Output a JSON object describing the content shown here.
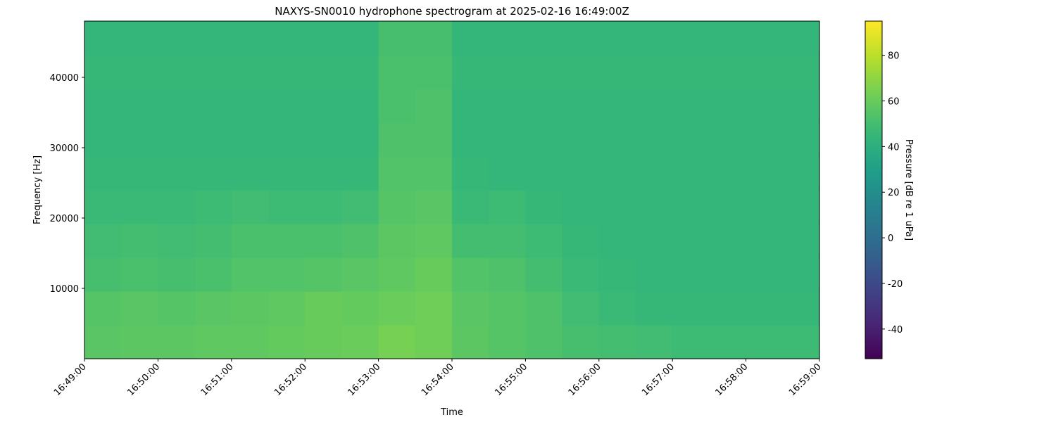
{
  "chart_data": {
    "type": "spectrogram",
    "title": "NAXYS-SN0010 hydrophone spectrogram at 2025-02-16 16:49:00Z",
    "xlabel": "Time",
    "ylabel": "Frequency [Hz]",
    "xticks": [
      "16:49:00",
      "16:50:00",
      "16:51:00",
      "16:52:00",
      "16:53:00",
      "16:54:00",
      "16:55:00",
      "16:56:00",
      "16:57:00",
      "16:58:00",
      "16:59:00"
    ],
    "ylim": [
      0,
      48000
    ],
    "yticks": [
      10000,
      20000,
      30000,
      40000
    ],
    "colormap": "viridis",
    "colorbar_label": "Pressure [dB re 1 uPa]",
    "clim": [
      -53,
      95
    ],
    "cticks": [
      -40,
      -20,
      0,
      20,
      40,
      60,
      80
    ],
    "z": [
      [
        56,
        57,
        57,
        58,
        58,
        59,
        60,
        61,
        64,
        62,
        57,
        55,
        53,
        51,
        50,
        49,
        48,
        48,
        48,
        48
      ],
      [
        55,
        56,
        55,
        56,
        57,
        58,
        60,
        59,
        61,
        62,
        56,
        55,
        53,
        49,
        47,
        46,
        46,
        46,
        46,
        46
      ],
      [
        51,
        52,
        51,
        52,
        54,
        54,
        55,
        56,
        58,
        60,
        54,
        53,
        50,
        47,
        46,
        45,
        45,
        45,
        45,
        45
      ],
      [
        49,
        50,
        49,
        50,
        52,
        52,
        52,
        53,
        57,
        58,
        50,
        50,
        48,
        46,
        45,
        45,
        45,
        45,
        45,
        45
      ],
      [
        47,
        47,
        47,
        48,
        49,
        48,
        48,
        49,
        55,
        56,
        47,
        48,
        46,
        45,
        45,
        45,
        45,
        45,
        45,
        45
      ],
      [
        46,
        46,
        46,
        46,
        46,
        46,
        46,
        46,
        54,
        54,
        46,
        45,
        45,
        45,
        45,
        45,
        45,
        45,
        45,
        45
      ],
      [
        45,
        45,
        45,
        45,
        45,
        45,
        45,
        45,
        53,
        53,
        45,
        45,
        45,
        45,
        45,
        45,
        45,
        45,
        45,
        45
      ],
      [
        45,
        45,
        45,
        45,
        45,
        45,
        45,
        45,
        52,
        53,
        45,
        45,
        45,
        45,
        45,
        45,
        45,
        45,
        45,
        45
      ],
      [
        46,
        46,
        46,
        46,
        46,
        46,
        46,
        46,
        52,
        52,
        46,
        46,
        46,
        46,
        46,
        46,
        46,
        46,
        46,
        46
      ],
      [
        45,
        45,
        45,
        45,
        45,
        45,
        45,
        45,
        51,
        51,
        45,
        45,
        45,
        45,
        45,
        45,
        45,
        45,
        45,
        45
      ]
    ]
  }
}
